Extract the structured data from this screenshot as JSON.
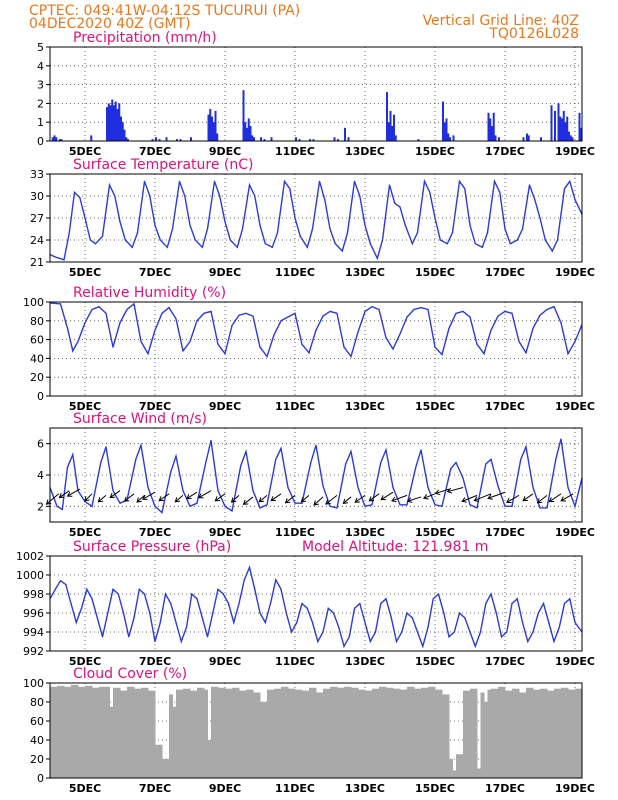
{
  "header": {
    "left_line1": "CPTEC:   049:41W-04:12S   TUCURUI (PA)",
    "left_line2": "04DEC2020 40Z (GMT)",
    "right_line1": "Vertical Grid Line: 40Z",
    "right_line2": "TQ0126L028"
  },
  "colors": {
    "header": "#e8781e",
    "title": "#e0117a",
    "line": "#2b3bdc",
    "bar": "#1f2fe0",
    "cloud": "#a9a9a9"
  },
  "x_labels": [
    "5DEC",
    "7DEC",
    "9DEC",
    "11DEC",
    "13DEC",
    "15DEC",
    "17DEC",
    "19DEC"
  ],
  "chart_data": [
    {
      "type": "bar",
      "title": "Precipitation (mm/h)",
      "ylim": [
        0,
        5
      ],
      "yticks": [
        0,
        1,
        2,
        3,
        4,
        5
      ],
      "x_range": [
        0,
        15.2
      ],
      "grid": true,
      "x": [
        0.05,
        0.1,
        0.15,
        0.25,
        0.3,
        1.15,
        1.6,
        1.65,
        1.7,
        1.75,
        1.8,
        1.85,
        1.9,
        1.95,
        2.0,
        2.05,
        2.1,
        2.15,
        2.2,
        2.9,
        3.0,
        3.1,
        3.3,
        3.6,
        3.7,
        4.0,
        4.5,
        4.55,
        4.6,
        4.65,
        4.7,
        4.75,
        5.5,
        5.55,
        5.6,
        5.65,
        5.7,
        5.75,
        5.8,
        6.0,
        6.1,
        6.3,
        7.0,
        7.1,
        7.4,
        7.5,
        8.1,
        8.2,
        8.4,
        8.5,
        9.6,
        9.65,
        9.7,
        9.75,
        9.8,
        9.85,
        10.5,
        11.2,
        11.25,
        11.3,
        11.35,
        11.4,
        11.5,
        12.5,
        12.55,
        12.6,
        12.65,
        12.7,
        12.8,
        13.5,
        13.6,
        13.65,
        14.0,
        14.3,
        14.4,
        14.5,
        14.55,
        14.6,
        14.65,
        14.7,
        14.75,
        14.8,
        14.85,
        14.9,
        15.1,
        15.15
      ],
      "values": [
        0.2,
        0.3,
        0.2,
        0.1,
        0.1,
        0.3,
        1.8,
        2.0,
        1.9,
        2.2,
        1.9,
        2.1,
        1.7,
        2.0,
        1.3,
        1.0,
        0.6,
        0.2,
        0.1,
        0.1,
        0.2,
        0.1,
        0.2,
        0.1,
        0.1,
        0.2,
        1.4,
        1.7,
        1.3,
        1.0,
        1.6,
        0.4,
        2.7,
        1.0,
        0.7,
        1.2,
        0.8,
        0.3,
        0.2,
        0.2,
        0.1,
        0.2,
        0.2,
        0.1,
        0.1,
        0.1,
        0.2,
        0.1,
        0.7,
        0.2,
        2.6,
        1.0,
        1.6,
        0.8,
        1.4,
        0.3,
        0.1,
        2.1,
        1.0,
        1.2,
        0.4,
        0.2,
        0.3,
        1.5,
        1.2,
        0.8,
        1.5,
        0.3,
        0.2,
        0.2,
        0.4,
        0.3,
        0.2,
        1.9,
        1.6,
        2.0,
        1.3,
        1.2,
        1.6,
        1.0,
        1.3,
        0.5,
        0.3,
        0.2,
        1.5,
        0.7
      ]
    },
    {
      "type": "line",
      "title": "Surface Temperature (nC)",
      "ylim": [
        21,
        33
      ],
      "yticks": [
        21,
        24,
        27,
        30,
        33
      ],
      "x_range": [
        0,
        15.2
      ],
      "grid": true,
      "x": [
        0,
        0.2,
        0.4,
        0.55,
        0.7,
        0.85,
        1.0,
        1.15,
        1.3,
        1.5,
        1.7,
        1.85,
        2.0,
        2.15,
        2.35,
        2.5,
        2.7,
        2.85,
        3.0,
        3.15,
        3.35,
        3.5,
        3.7,
        3.85,
        4.0,
        4.15,
        4.35,
        4.5,
        4.7,
        4.85,
        5.0,
        5.15,
        5.35,
        5.5,
        5.7,
        5.85,
        6.0,
        6.15,
        6.35,
        6.5,
        6.7,
        6.85,
        7.0,
        7.15,
        7.35,
        7.5,
        7.7,
        7.85,
        8.0,
        8.15,
        8.35,
        8.5,
        8.7,
        8.85,
        9.0,
        9.15,
        9.35,
        9.5,
        9.7,
        9.85,
        10.0,
        10.15,
        10.35,
        10.5,
        10.7,
        10.85,
        11.0,
        11.15,
        11.35,
        11.5,
        11.7,
        11.85,
        12.0,
        12.15,
        12.35,
        12.5,
        12.7,
        12.85,
        13.0,
        13.15,
        13.35,
        13.5,
        13.7,
        13.85,
        14.0,
        14.15,
        14.35,
        14.5,
        14.7,
        14.85,
        15.0,
        15.2
      ],
      "values": [
        22.0,
        21.6,
        21.3,
        25.0,
        30.5,
        29.8,
        27.0,
        24.0,
        23.5,
        24.5,
        31.5,
        30.0,
        26.5,
        24.0,
        23.0,
        25.0,
        32.0,
        30.0,
        26.0,
        24.0,
        23.0,
        25.5,
        32.0,
        30.0,
        26.0,
        24.0,
        23.0,
        25.5,
        32.0,
        30.0,
        26.5,
        24.0,
        23.0,
        25.5,
        31.5,
        30.0,
        26.0,
        23.5,
        23.0,
        25.0,
        32.0,
        31.0,
        27.0,
        24.5,
        23.0,
        25.5,
        32.0,
        29.5,
        25.5,
        23.5,
        22.5,
        25.0,
        32.0,
        30.0,
        26.0,
        23.5,
        21.5,
        24.0,
        31.5,
        29.0,
        28.5,
        26.0,
        23.5,
        25.0,
        32.0,
        30.5,
        27.0,
        24.0,
        23.5,
        25.0,
        32.0,
        31.0,
        26.0,
        23.5,
        23.0,
        25.0,
        32.0,
        30.5,
        25.5,
        23.5,
        24.0,
        25.5,
        31.5,
        29.5,
        27.0,
        24.0,
        22.5,
        24.0,
        31.0,
        32.0,
        29.5,
        27.5
      ]
    },
    {
      "type": "line",
      "title": "Relative Humidity (%)",
      "ylim": [
        0,
        100
      ],
      "yticks": [
        0,
        20,
        40,
        60,
        80,
        100
      ],
      "x_range": [
        0,
        15.2
      ],
      "grid": true,
      "x": [
        0,
        0.3,
        0.5,
        0.65,
        0.8,
        1.0,
        1.2,
        1.4,
        1.6,
        1.8,
        2.0,
        2.2,
        2.4,
        2.6,
        2.8,
        3.0,
        3.2,
        3.4,
        3.6,
        3.8,
        4.0,
        4.2,
        4.4,
        4.6,
        4.8,
        5.0,
        5.2,
        5.4,
        5.6,
        5.8,
        6.0,
        6.2,
        6.4,
        6.6,
        6.8,
        7.0,
        7.2,
        7.4,
        7.6,
        7.8,
        8.0,
        8.2,
        8.4,
        8.6,
        8.8,
        9.0,
        9.2,
        9.4,
        9.6,
        9.8,
        10.0,
        10.2,
        10.4,
        10.6,
        10.8,
        11.0,
        11.2,
        11.4,
        11.6,
        11.8,
        12.0,
        12.2,
        12.4,
        12.6,
        12.8,
        13.0,
        13.2,
        13.4,
        13.6,
        13.8,
        14.0,
        14.2,
        14.4,
        14.6,
        14.8,
        15.0,
        15.2
      ],
      "values": [
        99,
        98,
        72,
        48,
        58,
        78,
        92,
        95,
        88,
        52,
        78,
        92,
        98,
        58,
        45,
        70,
        88,
        94,
        82,
        48,
        58,
        80,
        88,
        90,
        55,
        45,
        75,
        86,
        88,
        85,
        52,
        42,
        65,
        80,
        84,
        88,
        55,
        46,
        70,
        85,
        90,
        88,
        52,
        42,
        68,
        90,
        95,
        92,
        62,
        50,
        66,
        84,
        92,
        94,
        92,
        52,
        44,
        72,
        88,
        90,
        84,
        55,
        45,
        70,
        85,
        90,
        88,
        58,
        46,
        72,
        86,
        92,
        95,
        78,
        45,
        58,
        76
      ]
    },
    {
      "type": "line",
      "title": "Surface Wind (m/s)",
      "ylim": [
        1,
        7
      ],
      "yticks": [
        2,
        4,
        6
      ],
      "x_range": [
        0,
        15.2
      ],
      "grid": true,
      "x": [
        0,
        0.2,
        0.35,
        0.5,
        0.65,
        0.8,
        1.0,
        1.2,
        1.45,
        1.6,
        1.8,
        2.0,
        2.2,
        2.45,
        2.6,
        2.8,
        3.0,
        3.2,
        3.45,
        3.6,
        3.8,
        4.0,
        4.2,
        4.45,
        4.6,
        4.8,
        5.0,
        5.2,
        5.45,
        5.6,
        5.8,
        6.0,
        6.2,
        6.45,
        6.6,
        6.8,
        7.0,
        7.2,
        7.45,
        7.6,
        7.8,
        8.0,
        8.2,
        8.45,
        8.6,
        8.8,
        9.0,
        9.2,
        9.45,
        9.6,
        9.8,
        10.0,
        10.2,
        10.45,
        10.6,
        10.8,
        11.0,
        11.2,
        11.45,
        11.6,
        11.8,
        12.0,
        12.2,
        12.45,
        12.6,
        12.8,
        13.0,
        13.2,
        13.45,
        13.6,
        13.8,
        14.0,
        14.2,
        14.45,
        14.6,
        14.8,
        15.0,
        15.2
      ],
      "values": [
        3.2,
        2.0,
        1.8,
        4.5,
        5.3,
        3.0,
        2.3,
        2.0,
        4.8,
        5.8,
        3.0,
        2.2,
        2.4,
        5.0,
        5.9,
        3.2,
        2.0,
        1.6,
        4.2,
        5.2,
        3.0,
        2.0,
        2.2,
        4.8,
        6.2,
        3.0,
        2.0,
        1.7,
        4.6,
        5.5,
        3.0,
        1.9,
        2.1,
        5.0,
        5.7,
        3.2,
        2.2,
        2.2,
        4.8,
        5.9,
        3.3,
        2.0,
        1.9,
        4.7,
        5.5,
        3.2,
        2.0,
        2.1,
        4.8,
        5.6,
        3.2,
        2.1,
        2.1,
        4.5,
        5.6,
        3.2,
        2.1,
        2.0,
        4.4,
        4.8,
        3.8,
        2.1,
        1.9,
        4.7,
        5.0,
        3.3,
        2.0,
        2.0,
        5.0,
        5.8,
        3.2,
        1.9,
        1.9,
        5.0,
        6.3,
        3.2,
        2.0,
        3.8
      ],
      "arrow_x": [
        0.25,
        0.55,
        0.85,
        1.2,
        1.6,
        2.0,
        2.4,
        2.7,
        3.0,
        3.4,
        3.8,
        4.2,
        4.6,
        5.0,
        5.4,
        5.8,
        6.2,
        6.6,
        7.0,
        7.4,
        7.8,
        8.2,
        8.6,
        9.0,
        9.4,
        9.8,
        10.2,
        10.6,
        11.0,
        11.4,
        11.8,
        12.2,
        12.6,
        13.0,
        13.4,
        13.8,
        14.2,
        14.6,
        14.95
      ],
      "arrow_y": [
        2.8,
        3.0,
        3.1,
        2.8,
        2.7,
        3.0,
        2.8,
        2.7,
        2.9,
        2.8,
        2.7,
        2.9,
        3.0,
        2.8,
        2.7,
        2.6,
        2.7,
        2.8,
        2.7,
        2.7,
        2.6,
        2.7,
        2.6,
        2.7,
        2.8,
        2.9,
        2.7,
        2.6,
        2.8,
        3.1,
        3.2,
        2.7,
        2.8,
        2.9,
        2.7,
        2.8,
        2.7,
        2.8,
        2.8
      ],
      "arrow_len": [
        16,
        12,
        14,
        10,
        10,
        12,
        12,
        10,
        14,
        12,
        10,
        12,
        14,
        12,
        10,
        12,
        10,
        12,
        12,
        10,
        12,
        14,
        10,
        12,
        12,
        14,
        16,
        14,
        12,
        14,
        16,
        16,
        18,
        18,
        14,
        12,
        12,
        14,
        14
      ],
      "arrow_ang": [
        40,
        35,
        30,
        45,
        40,
        35,
        38,
        42,
        30,
        35,
        40,
        32,
        30,
        36,
        42,
        38,
        40,
        35,
        38,
        40,
        42,
        38,
        40,
        35,
        36,
        32,
        20,
        18,
        22,
        18,
        15,
        22,
        22,
        20,
        30,
        35,
        38,
        34,
        30
      ]
    },
    {
      "type": "line",
      "title": "Surface Pressure (hPa)",
      "annotation": "Model Altitude: 121.981 m",
      "ylim": [
        992,
        1002
      ],
      "yticks": [
        992,
        994,
        996,
        998,
        1000,
        1002
      ],
      "x_range": [
        0,
        15.2
      ],
      "grid": true,
      "x": [
        0,
        0.15,
        0.3,
        0.45,
        0.6,
        0.75,
        0.9,
        1.05,
        1.2,
        1.35,
        1.5,
        1.65,
        1.8,
        1.95,
        2.1,
        2.25,
        2.4,
        2.55,
        2.7,
        2.85,
        3.0,
        3.15,
        3.3,
        3.45,
        3.6,
        3.75,
        3.9,
        4.05,
        4.2,
        4.35,
        4.5,
        4.65,
        4.8,
        4.95,
        5.1,
        5.25,
        5.4,
        5.55,
        5.7,
        5.85,
        6.0,
        6.15,
        6.3,
        6.45,
        6.6,
        6.75,
        6.9,
        7.05,
        7.2,
        7.35,
        7.5,
        7.65,
        7.8,
        7.95,
        8.1,
        8.25,
        8.4,
        8.55,
        8.7,
        8.85,
        9.0,
        9.15,
        9.3,
        9.45,
        9.6,
        9.75,
        9.9,
        10.05,
        10.2,
        10.35,
        10.5,
        10.65,
        10.8,
        10.95,
        11.1,
        11.25,
        11.4,
        11.55,
        11.7,
        11.85,
        12.0,
        12.15,
        12.3,
        12.45,
        12.6,
        12.75,
        12.9,
        13.05,
        13.2,
        13.35,
        13.5,
        13.65,
        13.8,
        13.95,
        14.1,
        14.25,
        14.4,
        14.55,
        14.7,
        14.85,
        15.0,
        15.2
      ],
      "values": [
        997.5,
        998.5,
        999.4,
        999.0,
        997.0,
        995.0,
        996.5,
        998.5,
        997.5,
        995.5,
        993.5,
        996.0,
        998.5,
        998.0,
        996.0,
        993.5,
        995.5,
        998.5,
        998.0,
        996.0,
        993.0,
        995.0,
        998.0,
        997.0,
        995.0,
        993.0,
        994.5,
        998.0,
        997.5,
        995.5,
        993.5,
        996.0,
        998.5,
        998.0,
        997.0,
        995.0,
        997.0,
        999.5,
        1000.8,
        998.5,
        996.0,
        995.0,
        997.0,
        999.5,
        998.5,
        996.0,
        994.0,
        995.0,
        997.0,
        996.5,
        995.0,
        993.0,
        994.0,
        996.5,
        996.0,
        994.5,
        992.5,
        993.5,
        996.5,
        997.0,
        995.0,
        993.0,
        994.0,
        997.0,
        997.5,
        995.5,
        993.0,
        994.0,
        996.0,
        995.5,
        994.0,
        992.5,
        994.5,
        997.5,
        998.0,
        996.0,
        993.5,
        994.0,
        996.0,
        995.5,
        994.0,
        992.5,
        994.0,
        997.0,
        998.0,
        996.0,
        993.5,
        994.0,
        997.0,
        997.5,
        995.0,
        993.0,
        994.0,
        996.0,
        997.0,
        995.0,
        993.0,
        994.5,
        997.0,
        997.5,
        995.0,
        994.0
      ]
    },
    {
      "type": "bar",
      "title": "Cloud Cover (%)",
      "ylim": [
        0,
        100
      ],
      "yticks": [
        0,
        20,
        40,
        60,
        80,
        100
      ],
      "x_range": [
        0,
        15.2
      ],
      "grid": true,
      "x": [
        0,
        0.2,
        0.4,
        0.6,
        0.8,
        1.0,
        1.2,
        1.4,
        1.6,
        1.7,
        1.8,
        2.0,
        2.2,
        2.4,
        2.6,
        2.8,
        3.0,
        3.2,
        3.4,
        3.5,
        3.6,
        3.8,
        4.0,
        4.2,
        4.4,
        4.5,
        4.6,
        4.8,
        5.0,
        5.2,
        5.4,
        5.6,
        5.8,
        6.0,
        6.2,
        6.4,
        6.6,
        6.8,
        7.0,
        7.2,
        7.4,
        7.6,
        7.8,
        8.0,
        8.2,
        8.4,
        8.6,
        8.8,
        9.0,
        9.2,
        9.4,
        9.6,
        9.8,
        10.0,
        10.2,
        10.4,
        10.6,
        10.8,
        11.0,
        11.2,
        11.4,
        11.5,
        11.6,
        11.8,
        12.0,
        12.2,
        12.3,
        12.4,
        12.5,
        12.6,
        12.8,
        13.0,
        13.2,
        13.4,
        13.6,
        13.8,
        14.0,
        14.2,
        14.4,
        14.6,
        14.8,
        15.0
      ],
      "values": [
        96,
        97,
        96,
        98,
        96,
        97,
        95,
        96,
        96,
        75,
        95,
        92,
        96,
        94,
        95,
        92,
        35,
        20,
        88,
        75,
        93,
        94,
        92,
        95,
        93,
        40,
        96,
        95,
        94,
        95,
        92,
        93,
        90,
        80,
        93,
        94,
        96,
        94,
        93,
        92,
        95,
        90,
        94,
        96,
        95,
        96,
        95,
        93,
        92,
        94,
        96,
        95,
        94,
        93,
        96,
        94,
        95,
        96,
        93,
        88,
        20,
        8,
        25,
        92,
        94,
        10,
        90,
        80,
        93,
        94,
        96,
        92,
        94,
        90,
        95,
        93,
        94,
        92,
        94,
        95,
        93,
        94
      ]
    }
  ]
}
